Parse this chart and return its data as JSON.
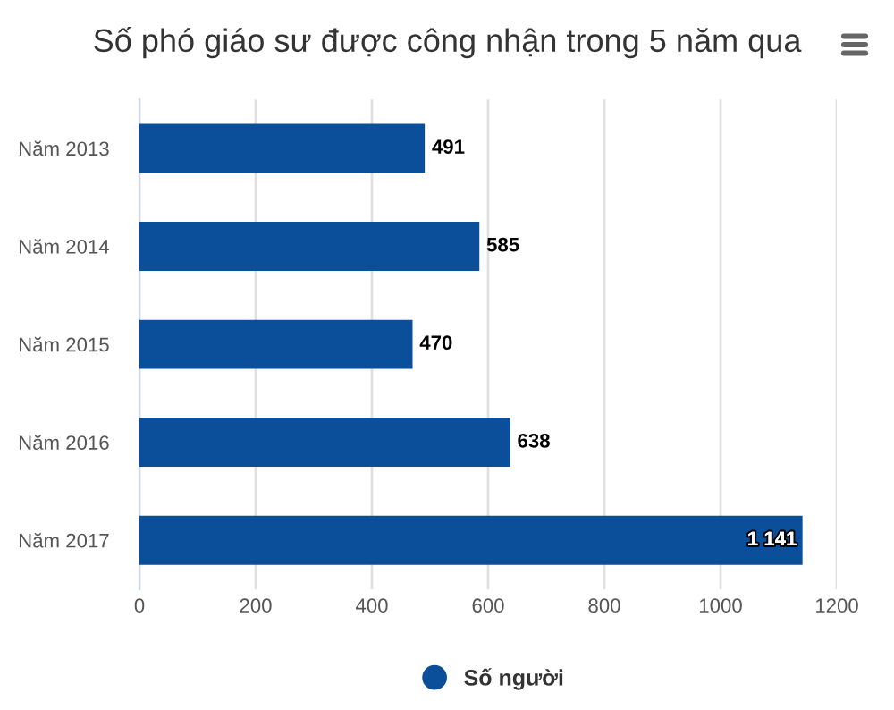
{
  "chart_data": {
    "type": "bar",
    "orientation": "horizontal",
    "title": "Số phó giáo sư được công nhận trong 5 năm qua",
    "categories": [
      "Năm 2013",
      "Năm 2014",
      "Năm 2015",
      "Năm 2016",
      "Năm 2017"
    ],
    "series": [
      {
        "name": "Số người",
        "color": "#0b4f9a",
        "values": [
          491,
          585,
          470,
          638,
          1141
        ],
        "value_labels": [
          "491",
          "585",
          "470",
          "638",
          "1 141"
        ]
      }
    ],
    "xlim": [
      0,
      1200
    ],
    "xticks": [
      0,
      200,
      400,
      600,
      800,
      1000,
      1200
    ],
    "grid": "x",
    "legend": "bottom"
  }
}
